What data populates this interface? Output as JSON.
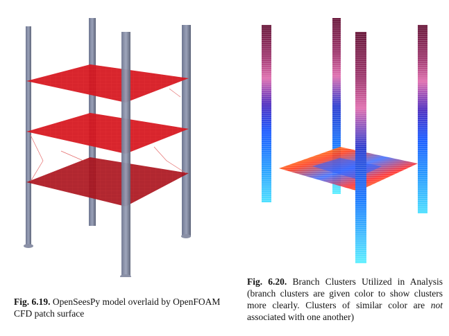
{
  "figures": [
    {
      "number": "Fig. 6.19.",
      "caption": "OpenSeesPy model overlaid by OpenFOAM CFD patch surface"
    },
    {
      "number": "Fig. 6.20.",
      "caption_part1": "Branch Clusters Utilized in Analysis (branch clusters are given color to show clusters more clearly.  Clusters of similar color are ",
      "caption_emph": "not",
      "caption_part2": " associated with one another)"
    }
  ]
}
